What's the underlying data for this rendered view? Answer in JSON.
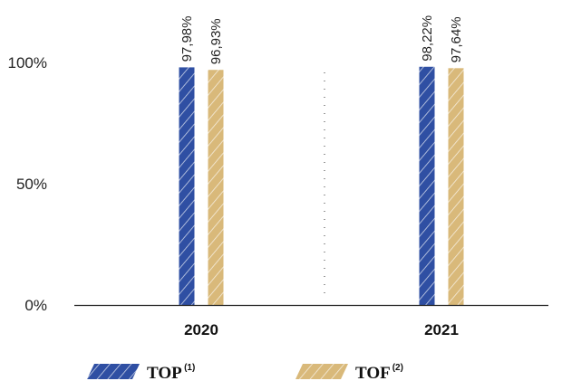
{
  "chart_data": {
    "type": "bar",
    "categories": [
      "2020",
      "2021"
    ],
    "series": [
      {
        "name": "TOP",
        "name_sup": "(1)",
        "values": [
          97.98,
          98.22
        ],
        "labels": [
          "97,98%",
          "98,22%"
        ],
        "color": "#2f4fa3"
      },
      {
        "name": "TOF",
        "name_sup": "(2)",
        "values": [
          96.93,
          97.64
        ],
        "labels": [
          "96,93%",
          "97,64%"
        ],
        "color": "#d9b97a"
      }
    ],
    "y_ticks": [
      {
        "value": 0,
        "label": "0%"
      },
      {
        "value": 50,
        "label": "50%"
      },
      {
        "value": 100,
        "label": "100%"
      }
    ],
    "ylim": [
      0,
      100
    ],
    "grid": false,
    "bar_pattern": "diagonal-hatch",
    "category_separator": "dotted-vertical",
    "legend_position": "bottom-left"
  }
}
